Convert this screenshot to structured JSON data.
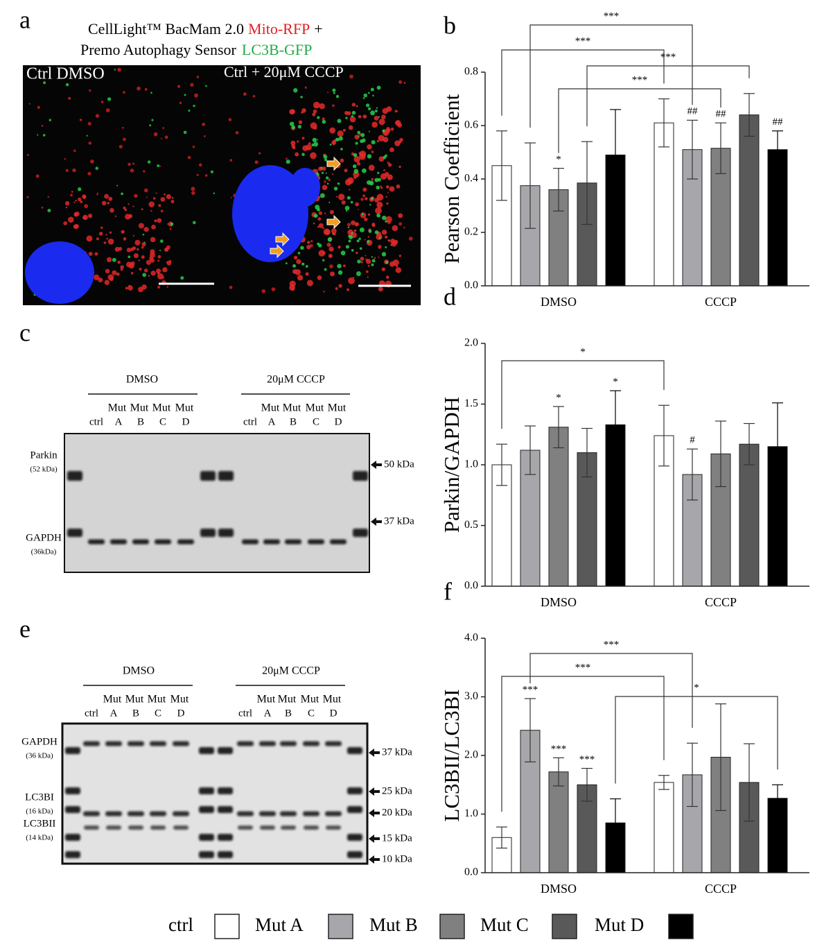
{
  "panel_a": {
    "label": "a",
    "title_main": "CellLight™ BacMam 2.0",
    "title_red": "Mito-RFP",
    "title_plus": "+",
    "title_line2": "Premo Autophagy Sensor",
    "title_green": "LC3B-GFP",
    "image_left": "Ctrl DMSO",
    "image_right": "Ctrl + 20μM CCCP"
  },
  "panel_c": {
    "label": "c",
    "group_left": "DMSO",
    "group_right": "20μM CCCP",
    "lanes_top": [
      "Mut",
      "Mut",
      "Mut",
      "Mut"
    ],
    "lanes_bottom": [
      "ctrl",
      "A",
      "B",
      "C",
      "D"
    ],
    "proteins": [
      {
        "name": "Parkin",
        "size": "(52 kDa)"
      },
      {
        "name": "GAPDH",
        "size": "(36kDa)"
      }
    ],
    "markers": [
      "50 kDa",
      "37 kDa"
    ]
  },
  "panel_e": {
    "label": "e",
    "group_left": "DMSO",
    "group_right": "20μM CCCP",
    "lanes_top": [
      "Mut",
      "Mut",
      "Mut",
      "Mut"
    ],
    "lanes_bottom": [
      "ctrl",
      "A",
      "B",
      "C",
      "D"
    ],
    "proteins": [
      {
        "name": "GAPDH",
        "size": "(36 kDa)"
      },
      {
        "name": "LC3BI",
        "size": "(16 kDa)"
      },
      {
        "name": "LC3BII",
        "size": "(14 kDa)"
      }
    ],
    "markers": [
      "37 kDa",
      "25 kDa",
      "20 kDa",
      "15 kDa",
      "10 kDa"
    ]
  },
  "chart_data": [
    {
      "type": "bar",
      "label": "b",
      "y_label": "Pearson Coefficient",
      "categories": [
        "DMSO",
        "CCCP"
      ],
      "ylim": [
        0,
        0.8
      ],
      "yticks": [
        {
          "value": 0,
          "label": "0.0"
        },
        {
          "value": 0.2,
          "label": "0.2"
        },
        {
          "value": 0.4,
          "label": "0.4"
        },
        {
          "value": 0.6,
          "label": "0.6"
        },
        {
          "value": 0.8,
          "label": "0.8"
        }
      ],
      "series": [
        {
          "name": "ctrl",
          "color": "#ffffff",
          "values": [
            0.45,
            0.61
          ],
          "errors": [
            0.13,
            0.09
          ],
          "sig": [
            null,
            null
          ]
        },
        {
          "name": "Mut A",
          "color": "#a7a7ab",
          "values": [
            0.375,
            0.51
          ],
          "errors": [
            0.16,
            0.11
          ],
          "sig": [
            null,
            "##"
          ]
        },
        {
          "name": "Mut B",
          "color": "#808080",
          "values": [
            0.36,
            0.515
          ],
          "errors": [
            0.08,
            0.095
          ],
          "sig": [
            "*",
            "##"
          ]
        },
        {
          "name": "Mut C",
          "color": "#595959",
          "values": [
            0.385,
            0.64
          ],
          "errors": [
            0.155,
            0.08
          ],
          "sig": [
            null,
            null
          ]
        },
        {
          "name": "Mut D",
          "color": "#000000",
          "values": [
            0.49,
            0.51
          ],
          "errors": [
            0.17,
            0.07
          ],
          "sig": [
            null,
            "##"
          ]
        }
      ],
      "annotations": [
        {
          "text": "***",
          "from": {
            "category": 0,
            "series": 1
          },
          "to": {
            "category": 1,
            "series": 1
          }
        },
        {
          "text": "***",
          "from": {
            "category": 0,
            "series": 0
          },
          "to": {
            "category": 1,
            "series": 0
          }
        },
        {
          "text": "***",
          "from": {
            "category": 0,
            "series": 3
          },
          "to": {
            "category": 1,
            "series": 3
          }
        },
        {
          "text": "***",
          "from": {
            "category": 0,
            "series": 2
          },
          "to": {
            "category": 1,
            "series": 2
          }
        }
      ]
    },
    {
      "type": "bar",
      "label": "d",
      "y_label": "Parkin/GAPDH",
      "categories": [
        "DMSO",
        "CCCP"
      ],
      "ylim": [
        0,
        2.0
      ],
      "yticks": [
        {
          "value": 0,
          "label": "0.0"
        },
        {
          "value": 0.5,
          "label": "0.5"
        },
        {
          "value": 1,
          "label": "1.0"
        },
        {
          "value": 1.5,
          "label": "1.5"
        },
        {
          "value": 2,
          "label": "2.0"
        }
      ],
      "series": [
        {
          "name": "ctrl",
          "color": "#ffffff",
          "values": [
            1.0,
            1.24
          ],
          "errors": [
            0.17,
            0.25
          ],
          "sig": [
            null,
            null
          ]
        },
        {
          "name": "Mut A",
          "color": "#a7a7ab",
          "values": [
            1.12,
            0.92
          ],
          "errors": [
            0.2,
            0.21
          ],
          "sig": [
            null,
            "#"
          ]
        },
        {
          "name": "Mut B",
          "color": "#808080",
          "values": [
            1.31,
            1.09
          ],
          "errors": [
            0.17,
            0.27
          ],
          "sig": [
            "*",
            null
          ]
        },
        {
          "name": "Mut C",
          "color": "#595959",
          "values": [
            1.1,
            1.17
          ],
          "errors": [
            0.2,
            0.17
          ],
          "sig": [
            null,
            null
          ]
        },
        {
          "name": "Mut D",
          "color": "#000000",
          "values": [
            1.33,
            1.15
          ],
          "errors": [
            0.28,
            0.36
          ],
          "sig": [
            "*",
            null
          ]
        }
      ],
      "annotations": [
        {
          "text": "*",
          "from": {
            "category": 0,
            "series": 0
          },
          "to": {
            "category": 1,
            "series": 0
          }
        }
      ]
    },
    {
      "type": "bar",
      "label": "f",
      "y_label": "LC3BII/LC3BI",
      "categories": [
        "DMSO",
        "CCCP"
      ],
      "ylim": [
        0,
        4.0
      ],
      "yticks": [
        {
          "value": 0,
          "label": "0.0"
        },
        {
          "value": 1,
          "label": "1.0"
        },
        {
          "value": 2,
          "label": "2.0"
        },
        {
          "value": 3,
          "label": "3.0"
        },
        {
          "value": 4,
          "label": "4.0"
        }
      ],
      "series": [
        {
          "name": "ctrl",
          "color": "#ffffff",
          "values": [
            0.6,
            1.54
          ],
          "errors": [
            0.18,
            0.12
          ],
          "sig": [
            null,
            null
          ]
        },
        {
          "name": "Mut A",
          "color": "#a7a7ab",
          "values": [
            2.43,
            1.67
          ],
          "errors": [
            0.54,
            0.54
          ],
          "sig": [
            "***",
            null
          ]
        },
        {
          "name": "Mut B",
          "color": "#808080",
          "values": [
            1.72,
            1.97
          ],
          "errors": [
            0.24,
            0.91
          ],
          "sig": [
            "***",
            null
          ]
        },
        {
          "name": "Mut C",
          "color": "#595959",
          "values": [
            1.5,
            1.54
          ],
          "errors": [
            0.28,
            0.66
          ],
          "sig": [
            "***",
            null
          ]
        },
        {
          "name": "Mut D",
          "color": "#000000",
          "values": [
            0.85,
            1.27
          ],
          "errors": [
            0.41,
            0.23
          ],
          "sig": [
            null,
            null
          ]
        }
      ],
      "annotations": [
        {
          "text": "***",
          "from": {
            "category": 0,
            "series": 1
          },
          "to": {
            "category": 1,
            "series": 1
          }
        },
        {
          "text": "***",
          "from": {
            "category": 0,
            "series": 0
          },
          "to": {
            "category": 1,
            "series": 0
          }
        },
        {
          "text": "*",
          "from": {
            "category": 0,
            "series": 4
          },
          "to": {
            "category": 1,
            "series": 4
          }
        }
      ]
    }
  ]
}
